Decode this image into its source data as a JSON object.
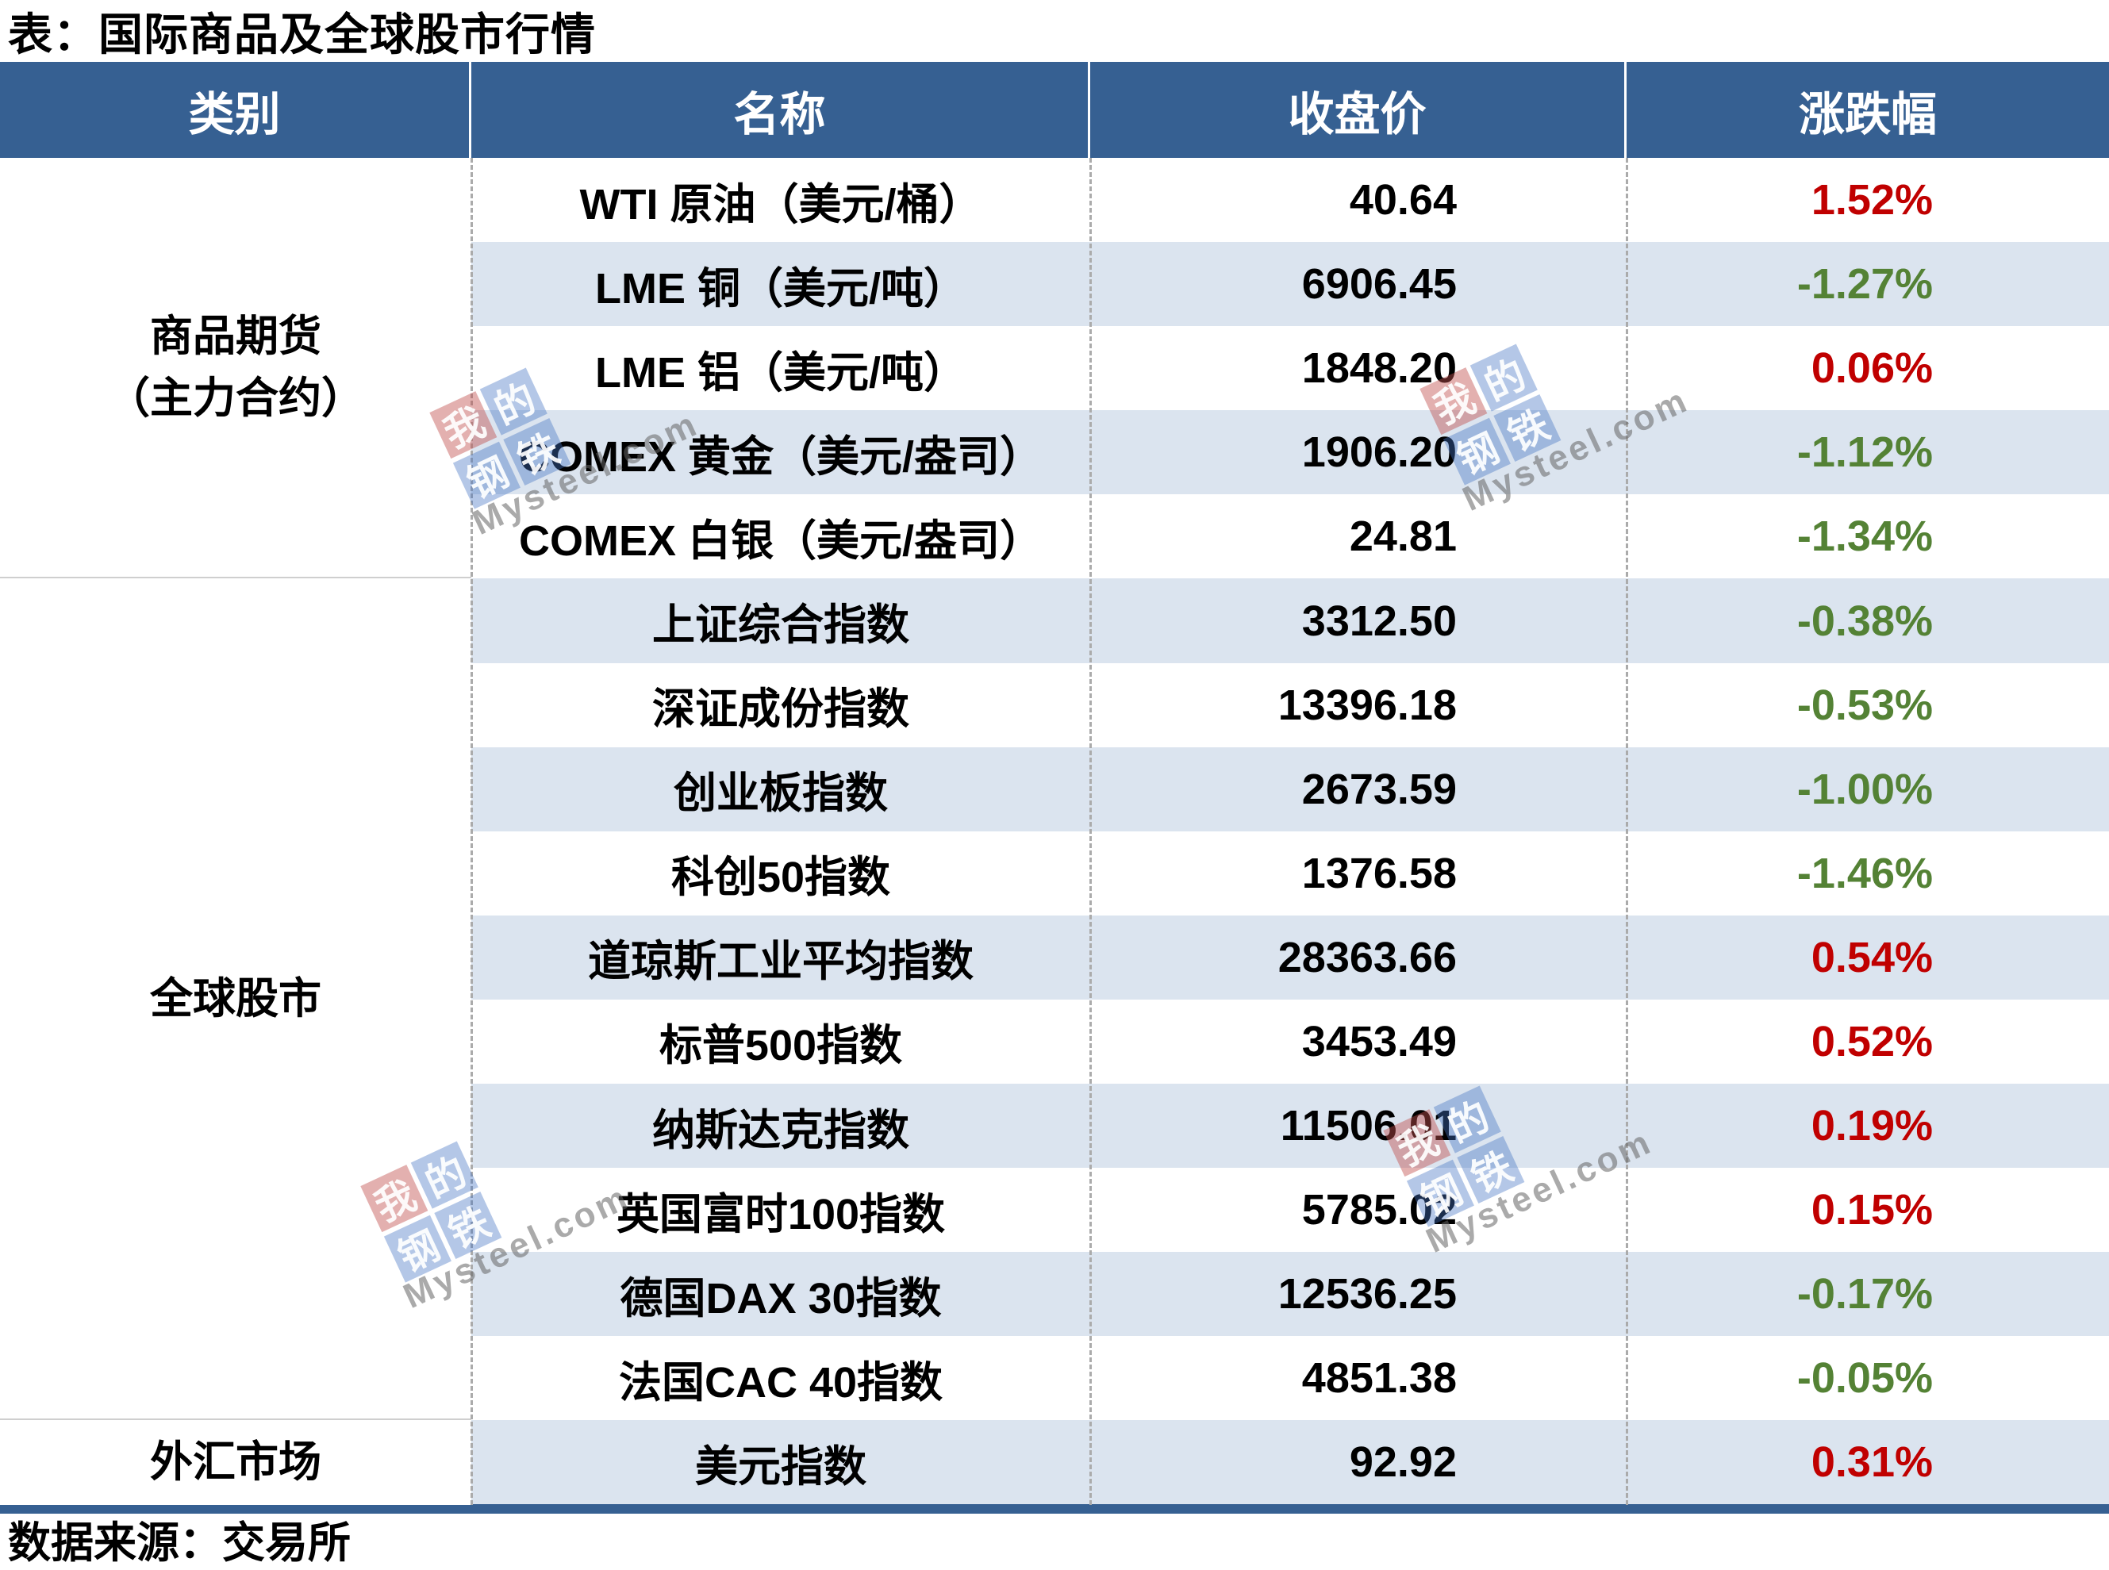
{
  "title": "表：国际商品及全球股市行情",
  "source_note": "数据来源：交易所",
  "table": {
    "headers": [
      "类别",
      "名称",
      "收盘价",
      "涨跌幅"
    ],
    "categories": [
      {
        "lines": [
          "商品期货",
          "（主力合约）"
        ],
        "rowspan": 5
      },
      {
        "lines": [
          "全球股市"
        ],
        "rowspan": 10
      },
      {
        "lines": [
          "外汇市场"
        ],
        "rowspan": 1
      }
    ],
    "rows": [
      {
        "name": "WTI 原油（美元/桶）",
        "close": "40.64",
        "change": "1.52%",
        "direction": "up"
      },
      {
        "name": "LME 铜（美元/吨）",
        "close": "6906.45",
        "change": "-1.27%",
        "direction": "down"
      },
      {
        "name": "LME 铝（美元/吨）",
        "close": "1848.20",
        "change": "0.06%",
        "direction": "up"
      },
      {
        "name": "COMEX 黄金（美元/盎司）",
        "close": "1906.20",
        "change": "-1.12%",
        "direction": "down"
      },
      {
        "name": "COMEX 白银（美元/盎司）",
        "close": "24.81",
        "change": "-1.34%",
        "direction": "down"
      },
      {
        "name": "上证综合指数",
        "close": "3312.50",
        "change": "-0.38%",
        "direction": "down"
      },
      {
        "name": "深证成份指数",
        "close": "13396.18",
        "change": "-0.53%",
        "direction": "down"
      },
      {
        "name": "创业板指数",
        "close": "2673.59",
        "change": "-1.00%",
        "direction": "down"
      },
      {
        "name": "科创50指数",
        "close": "1376.58",
        "change": "-1.46%",
        "direction": "down"
      },
      {
        "name": "道琼斯工业平均指数",
        "close": "28363.66",
        "change": "0.54%",
        "direction": "up"
      },
      {
        "name": "标普500指数",
        "close": "3453.49",
        "change": "0.52%",
        "direction": "up"
      },
      {
        "name": "纳斯达克指数",
        "close": "11506.01",
        "change": "0.19%",
        "direction": "up"
      },
      {
        "name": "英国富时100指数",
        "close": "5785.02",
        "change": "0.15%",
        "direction": "up"
      },
      {
        "name": "德国DAX 30指数",
        "close": "12536.25",
        "change": "-0.17%",
        "direction": "down"
      },
      {
        "name": "法国CAC 40指数",
        "close": "4851.38",
        "change": "-0.05%",
        "direction": "down"
      },
      {
        "name": "美元指数",
        "close": "92.92",
        "change": "0.31%",
        "direction": "up"
      }
    ]
  },
  "watermark": {
    "logo_chars": [
      "我",
      "的",
      "钢",
      "铁"
    ],
    "logo_text": "Mysteel.com"
  },
  "colors": {
    "header_bg": "#366092",
    "stripe_bg": "#DBE4EF",
    "up_red": "#C00000",
    "down_green": "#548235",
    "watermark_red": "#C0504D",
    "watermark_blue": "#4472C4"
  },
  "chart_data": {
    "type": "table",
    "title": "表：国际商品及全球股市行情",
    "columns": [
      "类别",
      "名称",
      "收盘价",
      "涨跌幅"
    ],
    "rows": [
      [
        "商品期货（主力合约）",
        "WTI 原油（美元/桶）",
        40.64,
        "1.52%"
      ],
      [
        "商品期货（主力合约）",
        "LME 铜（美元/吨）",
        6906.45,
        "-1.27%"
      ],
      [
        "商品期货（主力合约）",
        "LME 铝（美元/吨）",
        1848.2,
        "0.06%"
      ],
      [
        "商品期货（主力合约）",
        "COMEX 黄金（美元/盎司）",
        1906.2,
        "-1.12%"
      ],
      [
        "商品期货（主力合约）",
        "COMEX 白银（美元/盎司）",
        24.81,
        "-1.34%"
      ],
      [
        "全球股市",
        "上证综合指数",
        3312.5,
        "-0.38%"
      ],
      [
        "全球股市",
        "深证成份指数",
        13396.18,
        "-0.53%"
      ],
      [
        "全球股市",
        "创业板指数",
        2673.59,
        "-1.00%"
      ],
      [
        "全球股市",
        "科创50指数",
        1376.58,
        "-1.46%"
      ],
      [
        "全球股市",
        "道琼斯工业平均指数",
        28363.66,
        "0.54%"
      ],
      [
        "全球股市",
        "标普500指数",
        3453.49,
        "0.52%"
      ],
      [
        "全球股市",
        "纳斯达克指数",
        11506.01,
        "0.19%"
      ],
      [
        "全球股市",
        "英国富时100指数",
        5785.02,
        "0.15%"
      ],
      [
        "全球股市",
        "德国DAX 30指数",
        12536.25,
        "-0.17%"
      ],
      [
        "全球股市",
        "法国CAC 40指数",
        4851.38,
        "-0.05%"
      ],
      [
        "外汇市场",
        "美元指数",
        92.92,
        "0.31%"
      ]
    ],
    "notes": "red = 上涨(up), green = 下跌(down); source: 数据来源：交易所"
  }
}
